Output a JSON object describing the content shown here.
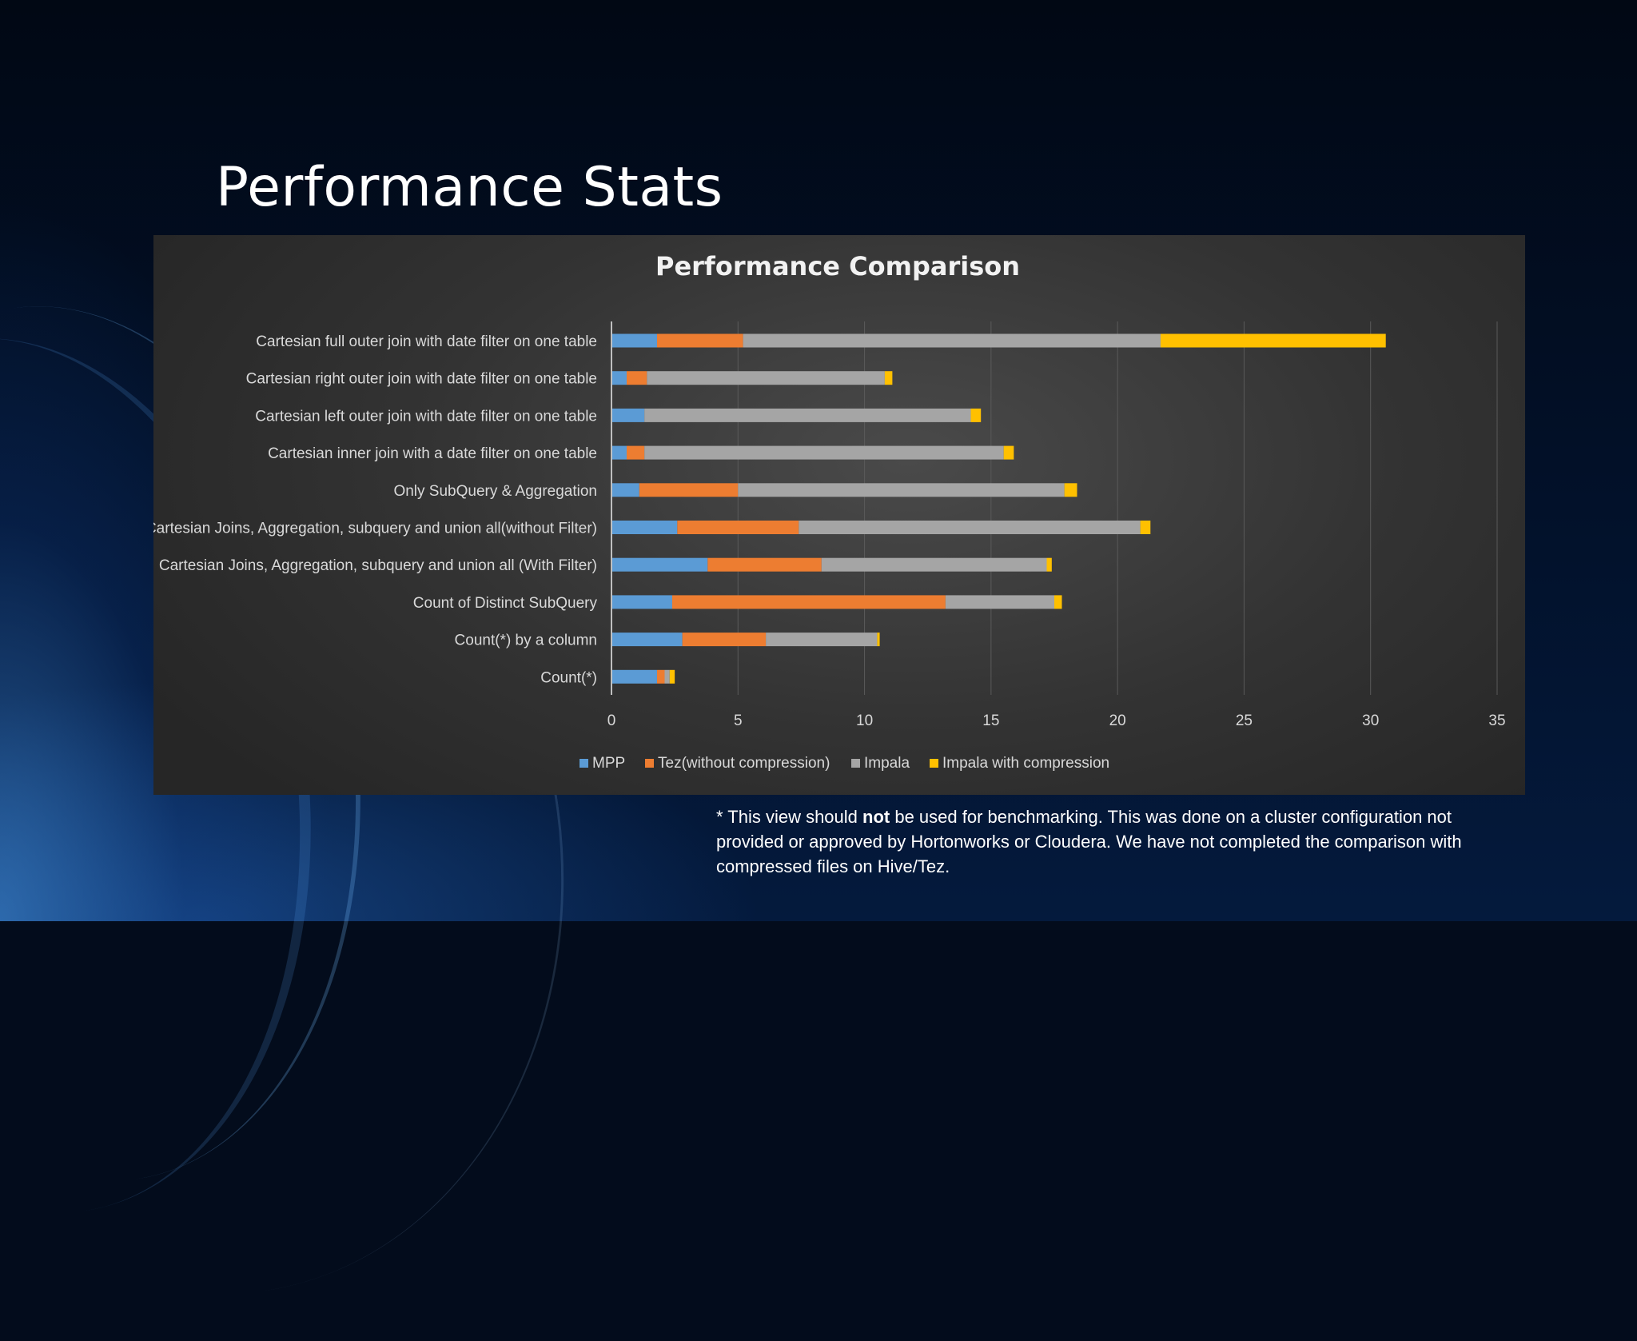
{
  "slide": {
    "title": "Performance Stats",
    "footnote": {
      "prefix": "* This view should ",
      "emphasis": "not",
      "suffix": " be used for benchmarking. This was done on a cluster configuration not provided or approved by Hortonworks or Cloudera. We have not completed the comparison with compressed files on Hive/Tez."
    }
  },
  "colors": {
    "MPP": "#5b9bd5",
    "Tez": "#ed7d31",
    "Impala": "#a5a5a5",
    "ImpalaCompression": "#ffc000",
    "text": "#d9d9d9",
    "title": "#f2f2f2"
  },
  "chart_data": {
    "type": "bar",
    "orientation": "horizontal",
    "stacked": true,
    "title": "Performance Comparison",
    "xlabel": "",
    "ylabel": "",
    "xlim": [
      0,
      35
    ],
    "xticks": [
      0,
      5,
      10,
      15,
      20,
      25,
      30,
      35
    ],
    "grid": true,
    "legend_position": "bottom",
    "categories": [
      "Cartesian full outer join with date filter on one table",
      "Cartesian right outer join with date filter on one table",
      "Cartesian left outer join with date filter on one table",
      "Cartesian inner join with a date filter on one table",
      "Only SubQuery & Aggregation",
      "Cartesian Joins, Aggregation, subquery and union all(without Filter)",
      "Cartesian Joins, Aggregation, subquery and union all (With Filter)",
      "Count of Distinct SubQuery",
      "Count(*) by a column",
      "Count(*)"
    ],
    "series": [
      {
        "name": "MPP",
        "color": "#5b9bd5",
        "values": [
          1.8,
          0.6,
          1.3,
          0.6,
          1.1,
          2.6,
          3.8,
          2.4,
          2.8,
          1.8
        ]
      },
      {
        "name": "Tez(without compression)",
        "color": "#ed7d31",
        "values": [
          3.4,
          0.8,
          0.0,
          0.7,
          3.9,
          4.8,
          4.5,
          10.8,
          3.3,
          0.3
        ]
      },
      {
        "name": "Impala",
        "color": "#a5a5a5",
        "values": [
          16.5,
          9.4,
          12.9,
          14.2,
          12.9,
          13.5,
          8.9,
          4.3,
          4.4,
          0.2
        ]
      },
      {
        "name": "Impala with compression",
        "color": "#ffc000",
        "values": [
          8.9,
          0.3,
          0.4,
          0.4,
          0.5,
          0.4,
          0.2,
          0.3,
          0.1,
          0.2
        ]
      }
    ]
  }
}
